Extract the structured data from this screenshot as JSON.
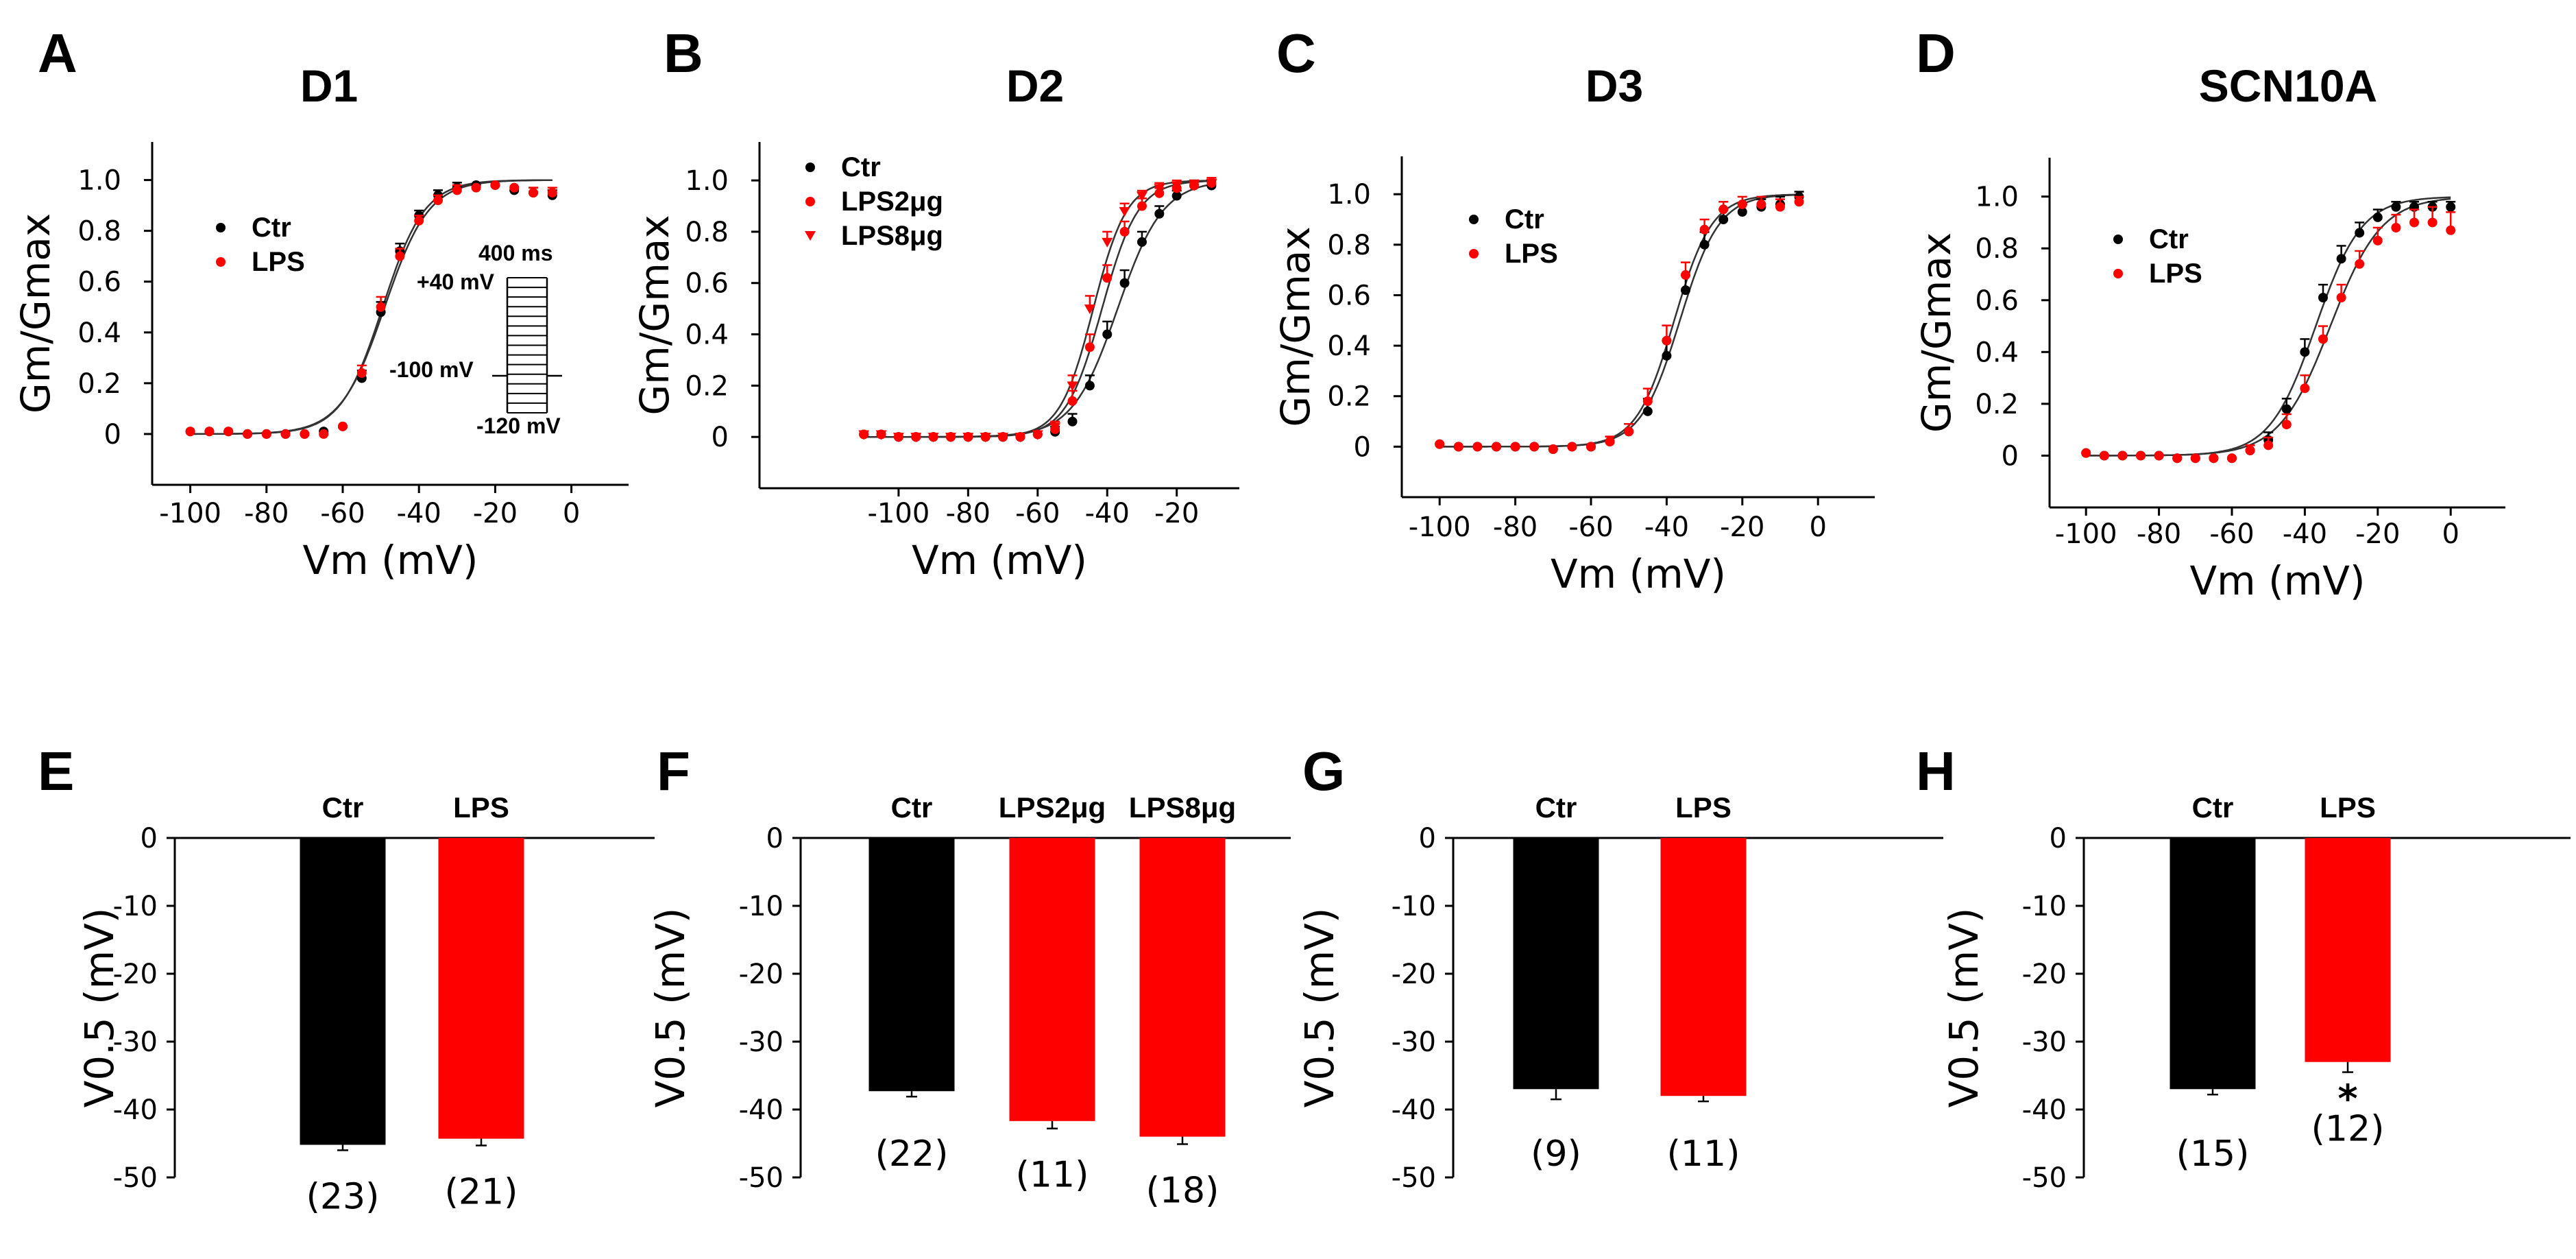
{
  "colors": {
    "ctr": "#000000",
    "lps": "#ff0000",
    "axis": "#000000",
    "fit": "#333333"
  },
  "chart_data": [
    {
      "panel": "A",
      "title": "D1",
      "type": "scatter",
      "xlabel": "Vm (mV)",
      "ylabel": "Gm/Gmax",
      "xlim": [
        -110,
        15
      ],
      "ylim": [
        -0.2,
        1.15
      ],
      "xticks": [
        -100,
        -80,
        -60,
        -40,
        -20,
        0
      ],
      "xtick_labels": [
        "-100",
        "-80",
        "-60",
        "-40",
        "-20",
        "0"
      ],
      "yticks": [
        0,
        0.2,
        0.4,
        0.6,
        0.8,
        1.0
      ],
      "ytick_labels": [
        "0",
        "0.2",
        "0.4",
        "0.6",
        "0.8",
        "1.0"
      ],
      "legend_position": "top-left",
      "x": [
        -100,
        -95,
        -90,
        -85,
        -80,
        -75,
        -70,
        -65,
        -60,
        -55,
        -50,
        -45,
        -40,
        -35,
        -30,
        -25,
        -20,
        -15,
        -10,
        -5
      ],
      "series": [
        {
          "name": "Ctr",
          "color_key": "ctr",
          "marker": "circle",
          "values": [
            0.01,
            0.01,
            0.01,
            0.0,
            0.0,
            0.0,
            0.0,
            0.01,
            0.03,
            0.22,
            0.48,
            0.72,
            0.86,
            0.94,
            0.97,
            0.98,
            0.98,
            0.96,
            0.95,
            0.94
          ],
          "errors": [
            0.01,
            0.01,
            0.01,
            0.01,
            0.01,
            0.01,
            0.01,
            0.01,
            0.01,
            0.03,
            0.04,
            0.03,
            0.02,
            0.02,
            0.02,
            0.01,
            0.01,
            0.01,
            0.02,
            0.02
          ]
        },
        {
          "name": "LPS",
          "color_key": "lps",
          "marker": "circle",
          "values": [
            0.01,
            0.01,
            0.01,
            0.0,
            0.0,
            0.0,
            0.0,
            0.0,
            0.03,
            0.24,
            0.5,
            0.7,
            0.84,
            0.92,
            0.96,
            0.97,
            0.98,
            0.97,
            0.95,
            0.95
          ],
          "errors": [
            0.01,
            0.01,
            0.01,
            0.01,
            0.01,
            0.01,
            0.01,
            0.01,
            0.01,
            0.03,
            0.04,
            0.03,
            0.02,
            0.02,
            0.02,
            0.01,
            0.01,
            0.01,
            0.02,
            0.02
          ]
        }
      ],
      "fits": [
        {
          "v_half": -49.5,
          "k": 5.5
        },
        {
          "v_half": -49.0,
          "k": 5.8
        }
      ],
      "inset": {
        "duration": "400 ms",
        "step_max": "+40 mV",
        "holding": "-100 mV",
        "prepulse": "-120 mV"
      }
    },
    {
      "panel": "B",
      "title": "D2",
      "type": "scatter",
      "xlabel": "Vm (mV)",
      "ylabel": "Gm/Gmax",
      "xlim": [
        -140,
        -2
      ],
      "ylim": [
        -0.2,
        1.15
      ],
      "xticks": [
        -100,
        -80,
        -60,
        -40,
        -20
      ],
      "xtick_labels": [
        "-100",
        "-80",
        "-60",
        "-40",
        "-20"
      ],
      "yticks": [
        0,
        0.2,
        0.4,
        0.6,
        0.8,
        1.0
      ],
      "ytick_labels": [
        "0",
        "0.2",
        "0.4",
        "0.6",
        "0.8",
        "1.0"
      ],
      "legend_position": "top-left",
      "x": [
        -110,
        -105,
        -100,
        -95,
        -90,
        -85,
        -80,
        -75,
        -70,
        -65,
        -60,
        -55,
        -50,
        -45,
        -40,
        -35,
        -30,
        -25,
        -20,
        -15,
        -10
      ],
      "series": [
        {
          "name": "Ctr",
          "color_key": "ctr",
          "marker": "circle",
          "values": [
            0.01,
            0.01,
            0.0,
            0.0,
            0.0,
            0.0,
            0.0,
            0.0,
            0.0,
            0.0,
            0.01,
            0.02,
            0.06,
            0.2,
            0.4,
            0.6,
            0.76,
            0.87,
            0.94,
            0.98,
            0.98
          ],
          "errors": [
            0.01,
            0.01,
            0.01,
            0.01,
            0.01,
            0.01,
            0.01,
            0.01,
            0.01,
            0.01,
            0.01,
            0.02,
            0.03,
            0.04,
            0.05,
            0.05,
            0.04,
            0.03,
            0.02,
            0.02,
            0.02
          ]
        },
        {
          "name": "LPS2μg",
          "color_key": "lps",
          "marker": "circle",
          "values": [
            0.01,
            0.01,
            0.0,
            0.0,
            0.0,
            0.0,
            0.0,
            0.0,
            0.0,
            0.0,
            0.01,
            0.03,
            0.14,
            0.35,
            0.62,
            0.8,
            0.9,
            0.95,
            0.97,
            0.98,
            0.99
          ],
          "errors": [
            0.01,
            0.01,
            0.01,
            0.01,
            0.01,
            0.01,
            0.01,
            0.01,
            0.01,
            0.01,
            0.01,
            0.02,
            0.04,
            0.05,
            0.05,
            0.04,
            0.03,
            0.02,
            0.02,
            0.02,
            0.02
          ]
        },
        {
          "name": "LPS8μg",
          "color_key": "lps",
          "marker": "triangle",
          "values": [
            0.01,
            0.01,
            0.0,
            0.0,
            0.0,
            0.0,
            0.0,
            0.0,
            0.0,
            0.0,
            0.01,
            0.04,
            0.2,
            0.5,
            0.76,
            0.88,
            0.94,
            0.97,
            0.98,
            0.98,
            0.99
          ],
          "errors": [
            0.01,
            0.01,
            0.01,
            0.01,
            0.01,
            0.01,
            0.01,
            0.01,
            0.01,
            0.01,
            0.01,
            0.02,
            0.04,
            0.05,
            0.04,
            0.03,
            0.02,
            0.02,
            0.02,
            0.02,
            0.02
          ]
        }
      ],
      "fits": [
        {
          "v_half": -37,
          "k": 6.5
        },
        {
          "v_half": -41.5,
          "k": 5.2
        },
        {
          "v_half": -44,
          "k": 4.8
        }
      ]
    },
    {
      "panel": "C",
      "title": "D3",
      "type": "scatter",
      "xlabel": "Vm (mV)",
      "ylabel": "Gm/Gmax",
      "xlim": [
        -110,
        15
      ],
      "ylim": [
        -0.2,
        1.15
      ],
      "xticks": [
        -100,
        -80,
        -60,
        -40,
        -20,
        0
      ],
      "xtick_labels": [
        "-100",
        "-80",
        "-60",
        "-40",
        "-20",
        "0"
      ],
      "yticks": [
        0,
        0.2,
        0.4,
        0.6,
        0.8,
        1.0
      ],
      "ytick_labels": [
        "0",
        "0.2",
        "0.4",
        "0.6",
        "0.8",
        "1.0"
      ],
      "legend_position": "top-left",
      "x": [
        -100,
        -95,
        -90,
        -85,
        -80,
        -75,
        -70,
        -65,
        -60,
        -55,
        -50,
        -45,
        -40,
        -35,
        -30,
        -25,
        -20,
        -15,
        -10,
        -5
      ],
      "series": [
        {
          "name": "Ctr",
          "color_key": "ctr",
          "marker": "circle",
          "values": [
            0.01,
            0.0,
            0.0,
            0.0,
            0.0,
            0.0,
            -0.01,
            0.0,
            0.0,
            0.02,
            0.06,
            0.14,
            0.36,
            0.62,
            0.8,
            0.9,
            0.93,
            0.95,
            0.96,
            0.99
          ],
          "errors": [
            0.01,
            0.01,
            0.01,
            0.01,
            0.01,
            0.01,
            0.01,
            0.01,
            0.01,
            0.02,
            0.03,
            0.05,
            0.06,
            0.06,
            0.05,
            0.04,
            0.03,
            0.03,
            0.03,
            0.02
          ]
        },
        {
          "name": "LPS",
          "color_key": "lps",
          "marker": "circle",
          "values": [
            0.01,
            0.0,
            0.0,
            0.0,
            0.0,
            0.0,
            -0.01,
            0.0,
            0.0,
            0.02,
            0.06,
            0.18,
            0.42,
            0.68,
            0.86,
            0.94,
            0.96,
            0.96,
            0.95,
            0.97
          ],
          "errors": [
            0.01,
            0.01,
            0.01,
            0.01,
            0.01,
            0.01,
            0.01,
            0.01,
            0.01,
            0.02,
            0.03,
            0.05,
            0.06,
            0.05,
            0.04,
            0.03,
            0.03,
            0.03,
            0.03,
            0.02
          ]
        }
      ],
      "fits": [
        {
          "v_half": -36.5,
          "k": 5.2
        },
        {
          "v_half": -38,
          "k": 5.0
        }
      ]
    },
    {
      "panel": "D",
      "title": "SCN10A",
      "type": "scatter",
      "xlabel": "Vm (mV)",
      "ylabel": "Gm/Gmax",
      "xlim": [
        -110,
        15
      ],
      "ylim": [
        -0.2,
        1.15
      ],
      "xticks": [
        -100,
        -80,
        -60,
        -40,
        -20,
        0
      ],
      "xtick_labels": [
        "-100",
        "-80",
        "-60",
        "-40",
        "-20",
        "0"
      ],
      "yticks": [
        0,
        0.2,
        0.4,
        0.6,
        0.8,
        1.0
      ],
      "ytick_labels": [
        "0",
        "0.2",
        "0.4",
        "0.6",
        "0.8",
        "1.0"
      ],
      "legend_position": "top-left",
      "x": [
        -100,
        -95,
        -90,
        -85,
        -80,
        -75,
        -70,
        -65,
        -60,
        -55,
        -50,
        -45,
        -40,
        -35,
        -30,
        -25,
        -20,
        -15,
        -10,
        -5,
        0
      ],
      "series": [
        {
          "name": "Ctr",
          "color_key": "ctr",
          "marker": "circle",
          "values": [
            0.01,
            0.0,
            0.0,
            0.0,
            0.0,
            -0.01,
            -0.01,
            -0.01,
            -0.01,
            0.02,
            0.06,
            0.18,
            0.4,
            0.61,
            0.76,
            0.86,
            0.92,
            0.96,
            0.96,
            0.96,
            0.96
          ],
          "errors": [
            0.01,
            0.01,
            0.01,
            0.01,
            0.01,
            0.01,
            0.01,
            0.01,
            0.01,
            0.02,
            0.03,
            0.04,
            0.05,
            0.05,
            0.05,
            0.04,
            0.03,
            0.02,
            0.02,
            0.02,
            0.02
          ]
        },
        {
          "name": "LPS",
          "color_key": "lps",
          "marker": "circle",
          "values": [
            0.01,
            0.0,
            0.0,
            0.0,
            0.0,
            -0.01,
            -0.01,
            -0.01,
            -0.01,
            0.02,
            0.04,
            0.12,
            0.26,
            0.45,
            0.61,
            0.74,
            0.83,
            0.88,
            0.9,
            0.9,
            0.87
          ],
          "errors": [
            0.01,
            0.01,
            0.01,
            0.01,
            0.01,
            0.01,
            0.01,
            0.01,
            0.01,
            0.02,
            0.03,
            0.04,
            0.05,
            0.05,
            0.05,
            0.05,
            0.05,
            0.05,
            0.05,
            0.06,
            0.07
          ]
        }
      ],
      "fits": [
        {
          "v_half": -37,
          "k": 6.3
        },
        {
          "v_half": -33,
          "k": 7.0
        }
      ]
    },
    {
      "panel": "E",
      "type": "bar",
      "ylabel": "V0.5 (mV)",
      "ylim": [
        -50,
        0
      ],
      "yticks": [
        0,
        -10,
        -20,
        -30,
        -40,
        -50
      ],
      "ytick_labels": [
        "0",
        "-10",
        "-20",
        "-30",
        "-40",
        "-50"
      ],
      "categories": [
        "Ctr",
        "LPS"
      ],
      "values": [
        -45.2,
        -44.3
      ],
      "errors": [
        0.8,
        1.0
      ],
      "color_keys": [
        "ctr",
        "lps"
      ],
      "n_labels": [
        "(23)",
        "(21)"
      ],
      "significance": [
        "",
        ""
      ]
    },
    {
      "panel": "F",
      "type": "bar",
      "ylabel": "V0.5 (mV)",
      "ylim": [
        -50,
        0
      ],
      "yticks": [
        0,
        -10,
        -20,
        -30,
        -40,
        -50
      ],
      "ytick_labels": [
        "0",
        "-10",
        "-20",
        "-30",
        "-40",
        "-50"
      ],
      "categories": [
        "Ctr",
        "LPS2μg",
        "LPS8μg"
      ],
      "values": [
        -37.3,
        -41.7,
        -44.0
      ],
      "errors": [
        0.8,
        1.1,
        1.1
      ],
      "color_keys": [
        "ctr",
        "lps",
        "lps"
      ],
      "n_labels": [
        "(22)",
        "(11)",
        "(18)"
      ],
      "significance": [
        "",
        "",
        ""
      ]
    },
    {
      "panel": "G",
      "type": "bar",
      "ylabel": "V0.5 (mV)",
      "ylim": [
        -50,
        0
      ],
      "yticks": [
        0,
        -10,
        -20,
        -30,
        -40,
        -50
      ],
      "ytick_labels": [
        "0",
        "-10",
        "-20",
        "-30",
        "-40",
        "-50"
      ],
      "categories": [
        "Ctr",
        "LPS"
      ],
      "values": [
        -37.0,
        -38.0
      ],
      "errors": [
        1.5,
        0.8
      ],
      "color_keys": [
        "ctr",
        "lps"
      ],
      "n_labels": [
        "(9)",
        "(11)"
      ],
      "significance": [
        "",
        ""
      ]
    },
    {
      "panel": "H",
      "type": "bar",
      "ylabel": "V0.5 (mV)",
      "ylim": [
        -50,
        0
      ],
      "yticks": [
        0,
        -10,
        -20,
        -30,
        -40,
        -50
      ],
      "ytick_labels": [
        "0",
        "-10",
        "-20",
        "-30",
        "-40",
        "-50"
      ],
      "categories": [
        "Ctr",
        "LPS"
      ],
      "values": [
        -37.0,
        -33.0
      ],
      "errors": [
        0.8,
        1.5
      ],
      "color_keys": [
        "ctr",
        "lps"
      ],
      "n_labels": [
        "(15)",
        "(12)"
      ],
      "significance": [
        "",
        "*"
      ]
    }
  ]
}
